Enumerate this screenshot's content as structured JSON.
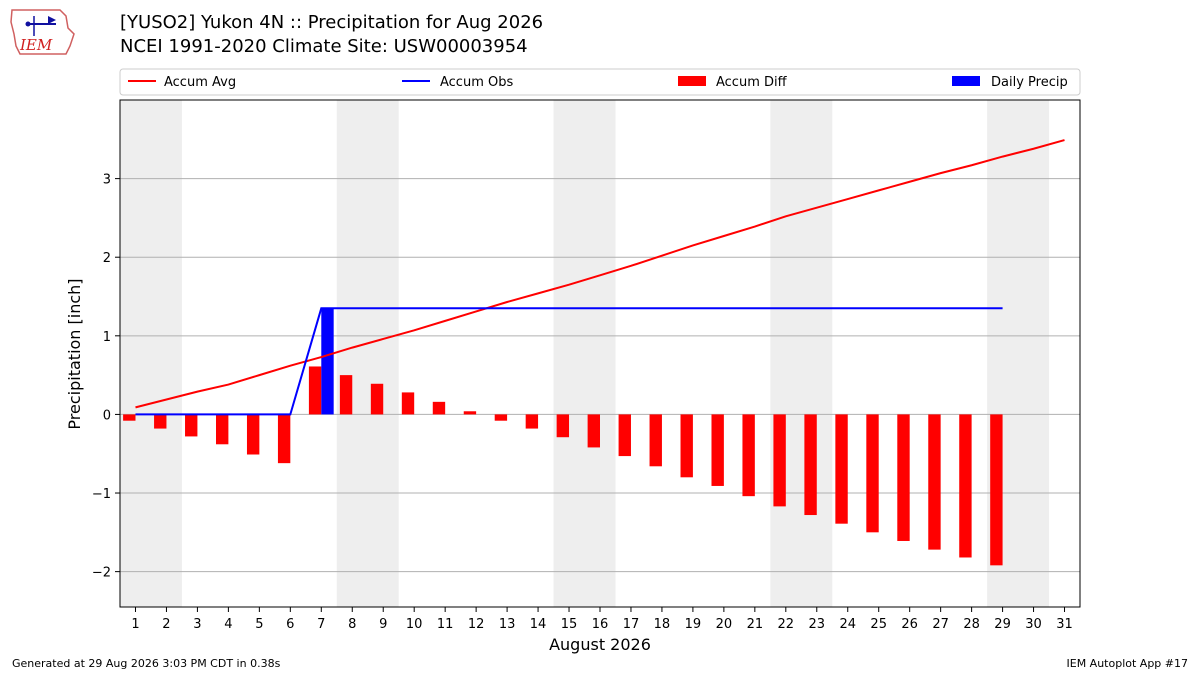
{
  "header": {
    "logo_text": "IEM",
    "title_line1": "[YUSO2] Yukon 4N :: Precipitation for Aug 2026",
    "title_line2": "NCEI 1991-2020 Climate Site: USW00003954"
  },
  "footer": {
    "generated": "Generated at 29 Aug 2026 3:03 PM CDT in 0.38s",
    "app": "IEM Autoplot App #17"
  },
  "chart_data": {
    "type": "bar",
    "xlabel": "August 2026",
    "ylabel": "Precipitation [inch]",
    "xlim": [
      0.5,
      31.5
    ],
    "ylim": [
      -2.45,
      4.0
    ],
    "yticks": [
      -2,
      -1,
      0,
      1,
      2,
      3
    ],
    "ytick_labels": [
      "−2",
      "−1",
      "0",
      "1",
      "2",
      "3"
    ],
    "xticks": [
      1,
      2,
      3,
      4,
      5,
      6,
      7,
      8,
      9,
      10,
      11,
      12,
      13,
      14,
      15,
      16,
      17,
      18,
      19,
      20,
      21,
      22,
      23,
      24,
      25,
      26,
      27,
      28,
      29,
      30,
      31
    ],
    "grid": "horizontal",
    "weekend_shading": [
      [
        0.5,
        2.5
      ],
      [
        7.5,
        9.5
      ],
      [
        14.5,
        16.5
      ],
      [
        21.5,
        23.5
      ],
      [
        28.5,
        30.5
      ]
    ],
    "legend_position": "top",
    "colors": {
      "accum_avg": "#ff0000",
      "accum_obs": "#0000ff",
      "accum_diff": "#ff0000",
      "daily_precip": "#0000ff",
      "weekend": "#eeeeee",
      "grid": "#b0b0b0"
    },
    "legend": [
      "Accum Avg",
      "Accum Obs",
      "Accum Diff",
      "Daily Precip"
    ],
    "series": [
      {
        "name": "Accum Avg",
        "kind": "line",
        "x": [
          1,
          2,
          3,
          4,
          5,
          6,
          7,
          8,
          9,
          10,
          11,
          12,
          13,
          14,
          15,
          16,
          17,
          18,
          19,
          20,
          21,
          22,
          23,
          24,
          25,
          26,
          27,
          28,
          29,
          30,
          31
        ],
        "values": [
          0.09,
          0.19,
          0.29,
          0.38,
          0.5,
          0.62,
          0.73,
          0.85,
          0.96,
          1.07,
          1.19,
          1.31,
          1.43,
          1.54,
          1.65,
          1.77,
          1.89,
          2.02,
          2.15,
          2.27,
          2.39,
          2.52,
          2.63,
          2.74,
          2.85,
          2.96,
          3.07,
          3.17,
          3.28,
          3.38,
          3.49
        ]
      },
      {
        "name": "Accum Obs",
        "kind": "line",
        "x": [
          1,
          2,
          3,
          4,
          5,
          6,
          7,
          8,
          9,
          10,
          11,
          12,
          13,
          14,
          15,
          16,
          17,
          18,
          19,
          20,
          21,
          22,
          23,
          24,
          25,
          26,
          27,
          28,
          29
        ],
        "values": [
          0,
          0,
          0,
          0,
          0,
          0,
          1.35,
          1.35,
          1.35,
          1.35,
          1.35,
          1.35,
          1.35,
          1.35,
          1.35,
          1.35,
          1.35,
          1.35,
          1.35,
          1.35,
          1.35,
          1.35,
          1.35,
          1.35,
          1.35,
          1.35,
          1.35,
          1.35,
          1.35
        ]
      },
      {
        "name": "Accum Diff",
        "kind": "bar",
        "x": [
          1,
          2,
          3,
          4,
          5,
          6,
          7,
          8,
          9,
          10,
          11,
          12,
          13,
          14,
          15,
          16,
          17,
          18,
          19,
          20,
          21,
          22,
          23,
          24,
          25,
          26,
          27,
          28,
          29
        ],
        "values": [
          -0.08,
          -0.18,
          -0.28,
          -0.38,
          -0.51,
          -0.62,
          0.61,
          0.5,
          0.39,
          0.28,
          0.16,
          0.04,
          -0.08,
          -0.18,
          -0.29,
          -0.42,
          -0.53,
          -0.66,
          -0.8,
          -0.91,
          -1.04,
          -1.17,
          -1.28,
          -1.39,
          -1.5,
          -1.61,
          -1.72,
          -1.82,
          -1.92
        ]
      },
      {
        "name": "Daily Precip",
        "kind": "bar",
        "x": [
          7
        ],
        "values": [
          1.35
        ]
      }
    ]
  }
}
